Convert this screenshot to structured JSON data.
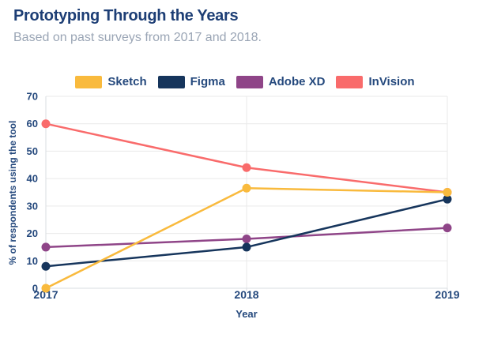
{
  "header": {
    "title": "Prototyping Through the Years",
    "subtitle": "Based on past surveys from 2017 and 2018."
  },
  "chart_data": {
    "type": "line",
    "title": "Prototyping Through the Years",
    "x": [
      "2017",
      "2018",
      "2019"
    ],
    "xlabel": "Year",
    "ylabel": "% of respondents using the tool",
    "ylim": [
      0,
      70
    ],
    "ytick_step": 10,
    "grid": true,
    "legend_position": "top-center",
    "series": [
      {
        "name": "Sketch",
        "color": "#F9BA3D",
        "values": [
          0,
          36.5,
          35
        ]
      },
      {
        "name": "Figma",
        "color": "#16355C",
        "values": [
          8,
          15,
          32.5
        ]
      },
      {
        "name": "Adobe XD",
        "color": "#8F4588",
        "values": [
          15,
          18,
          22
        ]
      },
      {
        "name": "InVision",
        "color": "#F96B6B",
        "values": [
          60,
          44,
          35
        ]
      }
    ]
  },
  "colors": {
    "background": "#FFFFFF",
    "title": "#1D3E75",
    "subtitle": "#9AA5B5",
    "tick_label": "#25497D",
    "gridline": "#E9E9E9",
    "axis_line": "#D9DDE2"
  }
}
